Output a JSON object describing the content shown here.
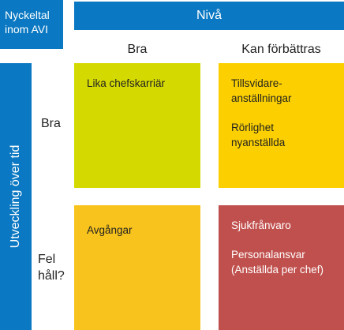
{
  "corner_label": [
    "Nyckeltal",
    "inom AVI"
  ],
  "level_header": "Nivå",
  "columns": [
    "Bra",
    "Kan förbättras"
  ],
  "trend_header": "Utveckling över tid",
  "rows": [
    [
      "Bra"
    ],
    [
      "Fel",
      "håll?"
    ]
  ],
  "cells": [
    [
      {
        "items": [
          [
            "Lika chefskarriär"
          ]
        ]
      },
      {
        "items": [
          [
            "Tillsvidare-",
            "anställningar"
          ],
          [
            "Rörlighet",
            "nyanställda"
          ]
        ]
      }
    ],
    [
      {
        "items": [
          [
            "Avgångar"
          ]
        ]
      },
      {
        "items": [
          [
            "Sjukfrånvaro"
          ],
          [
            "Personalansvar",
            "(Anställda per chef)"
          ]
        ]
      }
    ]
  ]
}
